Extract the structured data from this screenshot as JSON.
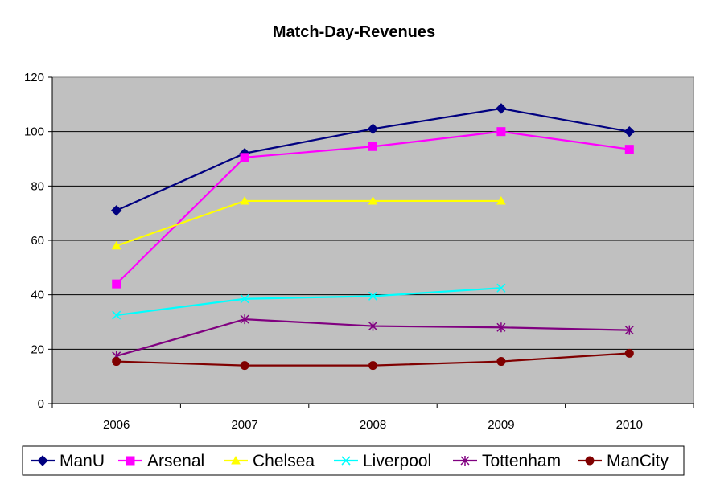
{
  "chart_data": {
    "type": "line",
    "title": "Match-Day-Revenues",
    "xlabel": "",
    "ylabel": "",
    "categories": [
      "2006",
      "2007",
      "2008",
      "2009",
      "2010"
    ],
    "ylim": [
      0,
      120
    ],
    "yticks": [
      0,
      20,
      40,
      60,
      80,
      100,
      120
    ],
    "grid": true,
    "legend_position": "bottom",
    "plot_background": "#c0c0c0",
    "series": [
      {
        "name": "ManU",
        "color": "#000080",
        "marker": "diamond",
        "values": [
          71,
          92,
          101,
          108.5,
          100
        ]
      },
      {
        "name": "Arsenal",
        "color": "#ff00ff",
        "marker": "square",
        "values": [
          44,
          90.5,
          94.5,
          100,
          93.5
        ]
      },
      {
        "name": "Chelsea",
        "color": "#ffff00",
        "marker": "triangle",
        "values": [
          58,
          74.5,
          74.5,
          74.5,
          null
        ]
      },
      {
        "name": "Liverpool",
        "color": "#00ffff",
        "marker": "x",
        "values": [
          32.5,
          38.5,
          39.5,
          42.5,
          null
        ]
      },
      {
        "name": "Tottenham",
        "color": "#800080",
        "marker": "star",
        "values": [
          17.5,
          31,
          28.5,
          28,
          27
        ]
      },
      {
        "name": "ManCity",
        "color": "#800000",
        "marker": "circle",
        "values": [
          15.5,
          14,
          14,
          15.5,
          18.5
        ]
      }
    ]
  }
}
